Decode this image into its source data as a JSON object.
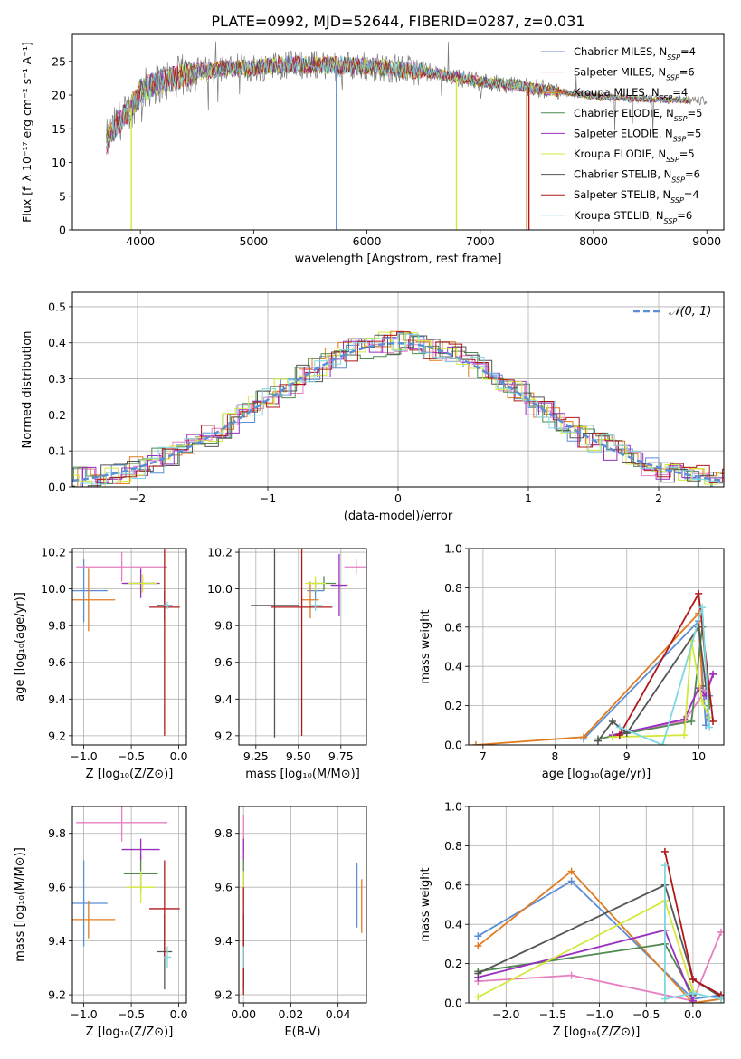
{
  "figure_title": "PLATE=0992, MJD=52644, FIBERID=0287, z=0.031",
  "colors": {
    "Chabrier MILES": "#5b8ed6",
    "Salpeter MILES": "#e57fc0",
    "Kroupa MILES": "#e07b20",
    "Chabrier ELODIE": "#4f8a4f",
    "Salpeter ELODIE": "#9a2fbf",
    "Kroupa ELODIE": "#d4e83a",
    "Chabrier STELIB": "#555555",
    "Salpeter STELIB": "#b01818",
    "Kroupa STELIB": "#7fd8e0"
  },
  "chart_data": [
    {
      "type": "line",
      "title": "PLATE=0992, MJD=52644, FIBERID=0287, z=0.031",
      "xlabel": "wavelength [Angstrom, rest frame]",
      "ylabel": "Flux [f_λ 10⁻¹⁷ erg cm⁻² s⁻¹ A⁻¹]",
      "xlim": [
        3400,
        9150
      ],
      "ylim": [
        0,
        29
      ],
      "xticks": [
        4000,
        5000,
        6000,
        7000,
        8000,
        9000
      ],
      "yticks": [
        0,
        5,
        10,
        15,
        20,
        25
      ],
      "legend_position": "top-right",
      "legend": [
        {
          "name": "Chabrier MILES",
          "label": "Chabrier MILES, N",
          "sub": "SSP",
          "tail": "=4"
        },
        {
          "name": "Salpeter MILES",
          "label": "Salpeter MILES, N",
          "sub": "SSP",
          "tail": "=6"
        },
        {
          "name": "Kroupa MILES",
          "label": "Kroupa MILES, N",
          "sub": "SSP",
          "tail": "=4"
        },
        {
          "name": "Chabrier ELODIE",
          "label": "Chabrier ELODIE, N",
          "sub": "SSP",
          "tail": "=5"
        },
        {
          "name": "Salpeter ELODIE",
          "label": "Salpeter ELODIE, N",
          "sub": "SSP",
          "tail": "=5"
        },
        {
          "name": "Kroupa ELODIE",
          "label": "Kroupa ELODIE, N",
          "sub": "SSP",
          "tail": "=5"
        },
        {
          "name": "Chabrier STELIB",
          "label": "Chabrier STELIB, N",
          "sub": "SSP",
          "tail": "=6"
        },
        {
          "name": "Salpeter STELIB",
          "label": "Salpeter STELIB, N",
          "sub": "SSP",
          "tail": "=4"
        },
        {
          "name": "Kroupa STELIB",
          "label": "Kroupa STELIB, N",
          "sub": "SSP",
          "tail": "=6"
        }
      ],
      "continuum": [
        [
          3700,
          13
        ],
        [
          3800,
          16
        ],
        [
          3900,
          17.5
        ],
        [
          3950,
          19
        ],
        [
          4000,
          20.5
        ],
        [
          4100,
          21.5
        ],
        [
          4300,
          22.5
        ],
        [
          4500,
          23.5
        ],
        [
          4800,
          24
        ],
        [
          5000,
          24
        ],
        [
          5200,
          24.5
        ],
        [
          5500,
          24.5
        ],
        [
          6000,
          24.3
        ],
        [
          6500,
          23.5
        ],
        [
          7000,
          22
        ],
        [
          7300,
          21.5
        ],
        [
          7500,
          21
        ],
        [
          7700,
          20.5
        ],
        [
          8000,
          19.8
        ],
        [
          8300,
          19.5
        ],
        [
          8600,
          19.3
        ],
        [
          8800,
          19.2
        ]
      ],
      "observed_range": [
        3700,
        9000
      ],
      "model_range": [
        3700,
        8850
      ],
      "model_drops": [
        {
          "series": "Kroupa ELODIE",
          "x": 3920
        },
        {
          "series": "Chabrier MILES",
          "x": 5730
        },
        {
          "series": "Kroupa ELODIE",
          "x": 6790
        },
        {
          "series": "Kroupa MILES",
          "x": 7410
        },
        {
          "series": "Salpeter STELIB",
          "x": 7430
        }
      ]
    },
    {
      "type": "step",
      "xlabel": "(data-model)/error",
      "ylabel": "Normed distribution",
      "xlim": [
        -2.5,
        2.5
      ],
      "ylim": [
        0,
        0.54
      ],
      "xticks": [
        -2,
        -1,
        0,
        1,
        2
      ],
      "yticks": [
        0.0,
        0.1,
        0.2,
        0.3,
        0.4,
        0.5
      ],
      "bin_width": 0.1,
      "reference": {
        "name": "𝒩(0, 1)",
        "mean": 0,
        "sigma": 1,
        "style": "dashed",
        "color": "#5b8ed6"
      },
      "legend_position": "top-right",
      "grid": true
    },
    {
      "type": "errorbar",
      "xlabel": "Z [log₁₀(Z/Z⊙)]",
      "ylabel": "age  [log₁₀(age/yr)]",
      "xlim": [
        -1.12,
        0.08
      ],
      "ylim": [
        9.15,
        10.22
      ],
      "xticks": [
        -1.0,
        -0.5,
        0.0
      ],
      "yticks": [
        9.2,
        9.4,
        9.6,
        9.8,
        10.0,
        10.2
      ],
      "points": [
        {
          "series": "Chabrier MILES",
          "x": -1.0,
          "xerr": 0.25,
          "y": 9.99,
          "yerr": 0.17
        },
        {
          "series": "Salpeter MILES",
          "x": -0.6,
          "xerr": 0.48,
          "y": 10.12,
          "yerr": 0.08
        },
        {
          "series": "Kroupa MILES",
          "x": -0.95,
          "xerr": 0.28,
          "y": 9.94,
          "yerr": 0.17
        },
        {
          "series": "Chabrier ELODIE",
          "x": -0.4,
          "xerr": 0.18,
          "y": 10.03,
          "yerr": 0.05
        },
        {
          "series": "Salpeter ELODIE",
          "x": -0.4,
          "xerr": 0.2,
          "y": 10.03,
          "yerr": 0.08
        },
        {
          "series": "Kroupa ELODIE",
          "x": -0.38,
          "xerr": 0.15,
          "y": 10.03,
          "yerr": 0.05
        },
        {
          "series": "Chabrier STELIB",
          "x": -0.15,
          "xerr": 0.08,
          "y": 9.91,
          "yerr": 0.08
        },
        {
          "series": "Salpeter STELIB",
          "x": -0.15,
          "xerr": 0.16,
          "y": 9.9,
          "yerr": 0.7
        },
        {
          "series": "Kroupa STELIB",
          "x": -0.12,
          "xerr": 0.04,
          "y": 9.91,
          "yerr": 0.02
        }
      ]
    },
    {
      "type": "errorbar",
      "xlabel": "mass [log₁₀(M/M⊙)]",
      "ylabel": "",
      "xlim": [
        9.15,
        9.9
      ],
      "ylim": [
        9.15,
        10.22
      ],
      "xticks": [
        9.25,
        9.5,
        9.75
      ],
      "yticks": [
        9.2,
        9.4,
        9.6,
        9.8,
        10.0,
        10.2
      ],
      "points": [
        {
          "series": "Chabrier MILES",
          "x": 9.6,
          "xerr": 0.05,
          "y": 9.99,
          "yerr": 0.05
        },
        {
          "series": "Salpeter MILES",
          "x": 9.84,
          "xerr": 0.07,
          "y": 10.12,
          "yerr": 0.04
        },
        {
          "series": "Kroupa MILES",
          "x": 9.57,
          "xerr": 0.05,
          "y": 9.94,
          "yerr": 0.1
        },
        {
          "series": "Chabrier ELODIE",
          "x": 9.65,
          "xerr": 0.07,
          "y": 10.03,
          "yerr": 0.04
        },
        {
          "series": "Salpeter ELODIE",
          "x": 9.74,
          "xerr": 0.05,
          "y": 10.02,
          "yerr": 0.17
        },
        {
          "series": "Kroupa ELODIE",
          "x": 9.6,
          "xerr": 0.06,
          "y": 10.03,
          "yerr": 0.04
        },
        {
          "series": "Chabrier STELIB",
          "x": 9.36,
          "xerr": 0.14,
          "y": 9.91,
          "yerr": 0.72
        },
        {
          "series": "Salpeter STELIB",
          "x": 9.52,
          "xerr": 0.18,
          "y": 9.9,
          "yerr": 0.7
        },
        {
          "series": "Kroupa STELIB",
          "x": 9.6,
          "xerr": 0.04,
          "y": 9.91,
          "yerr": 0.03
        }
      ]
    },
    {
      "type": "line",
      "xlabel": "age  [log₁₀(age/yr)]",
      "ylabel": "mass weight",
      "xlim": [
        6.8,
        10.35
      ],
      "ylim": [
        0,
        1.0
      ],
      "xticks": [
        7,
        8,
        9,
        10
      ],
      "yticks": [
        0.0,
        0.2,
        0.4,
        0.6,
        0.8,
        1.0
      ],
      "series": [
        {
          "name": "Chabrier MILES",
          "points": [
            [
              8.4,
              0.03
            ],
            [
              10.0,
              0.63
            ],
            [
              10.1,
              0.1
            ],
            [
              10.15,
              0.25
            ]
          ]
        },
        {
          "name": "Salpeter MILES",
          "points": [
            [
              8.8,
              0.05
            ],
            [
              9.8,
              0.12
            ],
            [
              10.1,
              0.28
            ],
            [
              10.2,
              0.36
            ]
          ]
        },
        {
          "name": "Kroupa MILES",
          "points": [
            [
              6.9,
              0.0
            ],
            [
              8.4,
              0.04
            ],
            [
              10.0,
              0.67
            ],
            [
              10.05,
              0.3
            ]
          ]
        },
        {
          "name": "Chabrier ELODIE",
          "points": [
            [
              8.6,
              0.03
            ],
            [
              9.0,
              0.06
            ],
            [
              9.9,
              0.12
            ],
            [
              10.05,
              0.6
            ],
            [
              10.15,
              0.2
            ]
          ]
        },
        {
          "name": "Salpeter ELODIE",
          "points": [
            [
              8.8,
              0.05
            ],
            [
              9.8,
              0.13
            ],
            [
              10.0,
              0.29
            ],
            [
              10.1,
              0.25
            ],
            [
              10.2,
              0.36
            ]
          ]
        },
        {
          "name": "Kroupa ELODIE",
          "points": [
            [
              8.8,
              0.04
            ],
            [
              9.8,
              0.05
            ],
            [
              9.9,
              0.53
            ],
            [
              10.05,
              0.22
            ],
            [
              10.15,
              0.14
            ]
          ]
        },
        {
          "name": "Chabrier STELIB",
          "points": [
            [
              8.6,
              0.02
            ],
            [
              8.8,
              0.12
            ],
            [
              9.0,
              0.06
            ],
            [
              10.0,
              0.6
            ],
            [
              10.1,
              0.3
            ]
          ]
        },
        {
          "name": "Salpeter STELIB",
          "points": [
            [
              8.9,
              0.05
            ],
            [
              10.0,
              0.77
            ],
            [
              10.2,
              0.12
            ]
          ]
        },
        {
          "name": "Kroupa STELIB",
          "points": [
            [
              8.9,
              0.09
            ],
            [
              9.5,
              0.0
            ],
            [
              10.05,
              0.7
            ],
            [
              10.15,
              0.09
            ]
          ]
        }
      ]
    },
    {
      "type": "errorbar",
      "xlabel": "Z [log₁₀(Z/Z⊙)]",
      "ylabel": "mass [log₁₀(M/M⊙)]",
      "xlim": [
        -1.12,
        0.08
      ],
      "ylim": [
        9.17,
        9.9
      ],
      "xticks": [
        -1.0,
        -0.5,
        0.0
      ],
      "yticks": [
        9.2,
        9.4,
        9.6,
        9.8
      ],
      "points": [
        {
          "series": "Chabrier MILES",
          "x": -1.0,
          "xerr": 0.25,
          "y": 9.54,
          "yerr": 0.16
        },
        {
          "series": "Salpeter MILES",
          "x": -0.6,
          "xerr": 0.48,
          "y": 9.84,
          "yerr": 0.07
        },
        {
          "series": "Kroupa MILES",
          "x": -0.95,
          "xerr": 0.28,
          "y": 9.48,
          "yerr": 0.07
        },
        {
          "series": "Chabrier ELODIE",
          "x": -0.4,
          "xerr": 0.18,
          "y": 9.65,
          "yerr": 0.07
        },
        {
          "series": "Salpeter ELODIE",
          "x": -0.4,
          "xerr": 0.2,
          "y": 9.74,
          "yerr": 0.04
        },
        {
          "series": "Kroupa ELODIE",
          "x": -0.4,
          "xerr": 0.15,
          "y": 9.6,
          "yerr": 0.06
        },
        {
          "series": "Chabrier STELIB",
          "x": -0.15,
          "xerr": 0.08,
          "y": 9.36,
          "yerr": 0.14
        },
        {
          "series": "Salpeter STELIB",
          "x": -0.15,
          "xerr": 0.16,
          "y": 9.52,
          "yerr": 0.18
        },
        {
          "series": "Kroupa STELIB",
          "x": -0.12,
          "xerr": 0.04,
          "y": 9.34,
          "yerr": 0.04
        }
      ]
    },
    {
      "type": "errorbar",
      "xlabel": "E(B-V)",
      "ylabel": "",
      "xlim": [
        -0.002,
        0.052
      ],
      "ylim": [
        9.17,
        9.9
      ],
      "xticks": [
        0.0,
        0.02,
        0.04
      ],
      "yticks": [
        9.2,
        9.4,
        9.6,
        9.8
      ],
      "points": [
        {
          "series": "Chabrier MILES",
          "x": 0.048,
          "xerr": 0,
          "y": 9.57,
          "yerr": 0.12
        },
        {
          "series": "Salpeter MILES",
          "x": 0.0,
          "xerr": 0,
          "y": 9.8,
          "yerr": 0.07
        },
        {
          "series": "Kroupa MILES",
          "x": 0.05,
          "xerr": 0,
          "y": 9.53,
          "yerr": 0.1
        },
        {
          "series": "Chabrier ELODIE",
          "x": 0.0,
          "xerr": 0,
          "y": 9.65,
          "yerr": 0.05
        },
        {
          "series": "Salpeter ELODIE",
          "x": 0.0,
          "xerr": 0,
          "y": 9.74,
          "yerr": 0.04
        },
        {
          "series": "Kroupa ELODIE",
          "x": 0.0,
          "xerr": 0,
          "y": 9.6,
          "yerr": 0.06
        },
        {
          "series": "Chabrier STELIB",
          "x": 0.0,
          "xerr": 0,
          "y": 9.36,
          "yerr": 0.14
        },
        {
          "series": "Salpeter STELIB",
          "x": 0.0,
          "xerr": 0,
          "y": 9.4,
          "yerr": 0.2
        },
        {
          "series": "Kroupa STELIB",
          "x": 0.0,
          "xerr": 0,
          "y": 9.34,
          "yerr": 0.04
        }
      ]
    },
    {
      "type": "line",
      "xlabel": "Z [log₁₀(Z/Z⊙)]",
      "ylabel": "mass weight",
      "xlim": [
        -2.4,
        0.33
      ],
      "ylim": [
        0,
        1.0
      ],
      "xticks": [
        -2.0,
        -1.5,
        -1.0,
        -0.5,
        0.0
      ],
      "yticks": [
        0.0,
        0.2,
        0.4,
        0.6,
        0.8,
        1.0
      ],
      "series": [
        {
          "name": "Chabrier MILES",
          "points": [
            [
              -2.3,
              0.34
            ],
            [
              -1.3,
              0.62
            ],
            [
              0.0,
              0.02
            ],
            [
              0.3,
              0.04
            ]
          ]
        },
        {
          "name": "Salpeter MILES",
          "points": [
            [
              -2.3,
              0.11
            ],
            [
              -1.3,
              0.14
            ],
            [
              0.0,
              0.01
            ],
            [
              0.3,
              0.36
            ]
          ]
        },
        {
          "name": "Kroupa MILES",
          "points": [
            [
              -2.3,
              0.29
            ],
            [
              -1.3,
              0.67
            ],
            [
              0.0,
              0.0
            ],
            [
              0.3,
              0.02
            ]
          ]
        },
        {
          "name": "Chabrier ELODIE",
          "points": [
            [
              -2.3,
              0.16
            ],
            [
              -0.3,
              0.3
            ],
            [
              0.0,
              0.04
            ]
          ]
        },
        {
          "name": "Salpeter ELODIE",
          "points": [
            [
              -2.3,
              0.13
            ],
            [
              -0.3,
              0.37
            ],
            [
              0.0,
              0.01
            ]
          ]
        },
        {
          "name": "Kroupa ELODIE",
          "points": [
            [
              -2.3,
              0.03
            ],
            [
              -0.3,
              0.52
            ],
            [
              0.0,
              0.06
            ]
          ]
        },
        {
          "name": "Chabrier STELIB",
          "points": [
            [
              -2.3,
              0.15
            ],
            [
              -0.3,
              0.6
            ],
            [
              0.0,
              0.12
            ],
            [
              0.3,
              0.03
            ]
          ]
        },
        {
          "name": "Salpeter STELIB",
          "points": [
            [
              -0.3,
              0.77
            ],
            [
              0.0,
              0.12
            ],
            [
              0.3,
              0.04
            ]
          ]
        },
        {
          "name": "Kroupa STELIB",
          "points": [
            [
              -0.3,
              0.7
            ],
            [
              -0.3,
              0.02
            ],
            [
              0.0,
              0.05
            ],
            [
              0.3,
              0.02
            ]
          ]
        }
      ]
    }
  ]
}
